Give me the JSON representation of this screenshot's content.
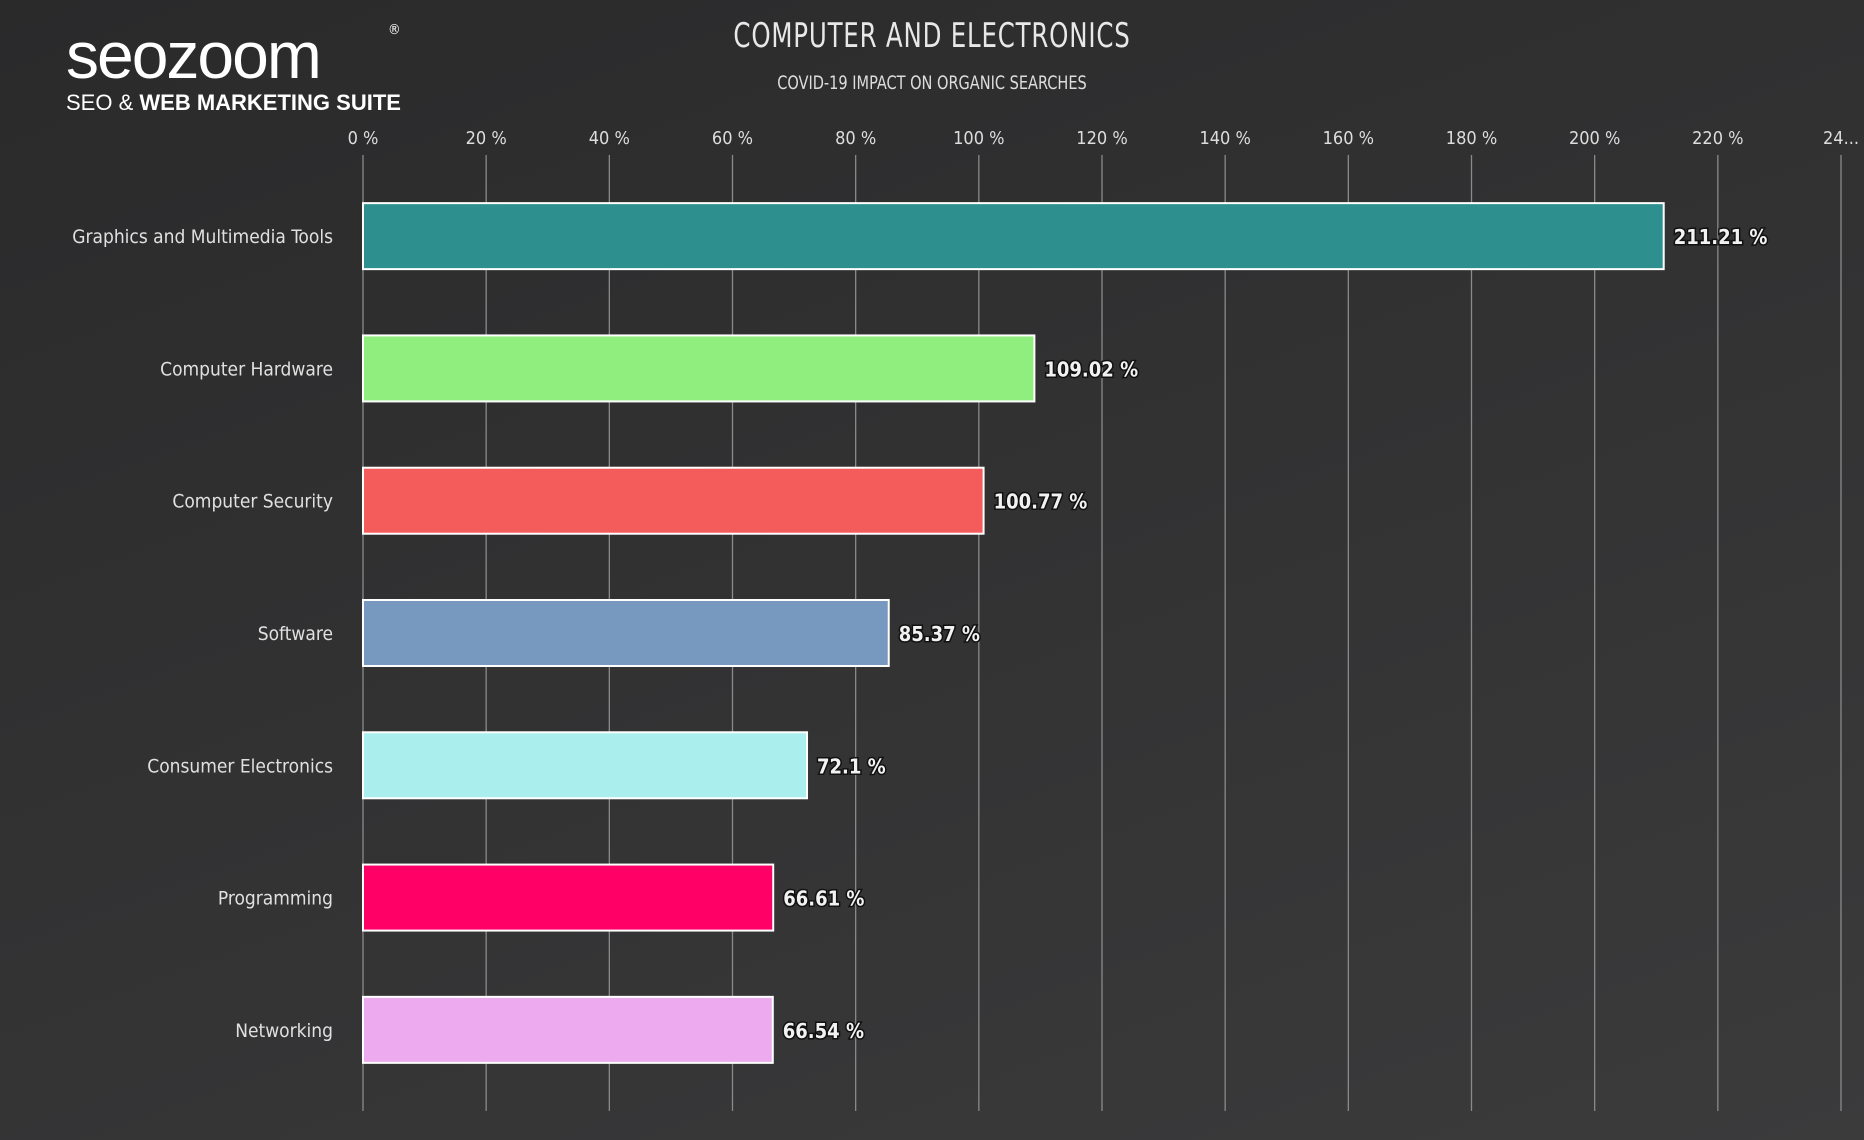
{
  "logo": {
    "word": "seozoom",
    "tagline_light": "SEO &",
    "tagline_bold": "WEB MARKETING SUITE"
  },
  "chart_data": {
    "type": "bar",
    "orientation": "horizontal",
    "title": "COMPUTER AND ELECTRONICS",
    "subtitle": "COVID-19 IMPACT ON ORGANIC SEARCHES",
    "categories": [
      "Graphics and Multimedia Tools",
      "Computer Hardware",
      "Computer Security",
      "Software",
      "Consumer Electronics",
      "Programming",
      "Networking"
    ],
    "values": [
      211.21,
      109.02,
      100.77,
      85.37,
      72.1,
      66.61,
      66.54
    ],
    "value_labels": [
      "211.21 %",
      "109.02 %",
      "100.77 %",
      "85.37 %",
      "72.1 %",
      "66.61 %",
      "66.54 %"
    ],
    "colors": [
      "#2e8f8f",
      "#90ee7e",
      "#f45b5b",
      "#7798bf",
      "#aaeeee",
      "#ff0066",
      "#eeaaee"
    ],
    "xlim": [
      0,
      240
    ],
    "tick_labels": [
      "0 %",
      "20 %",
      "40 %",
      "60 %",
      "80 %",
      "100 %",
      "120 %",
      "140 %",
      "160 %",
      "180 %",
      "200 %",
      "220 %",
      "24..."
    ],
    "axis_position": "top",
    "grid": true,
    "xlabel": "",
    "ylabel": ""
  }
}
